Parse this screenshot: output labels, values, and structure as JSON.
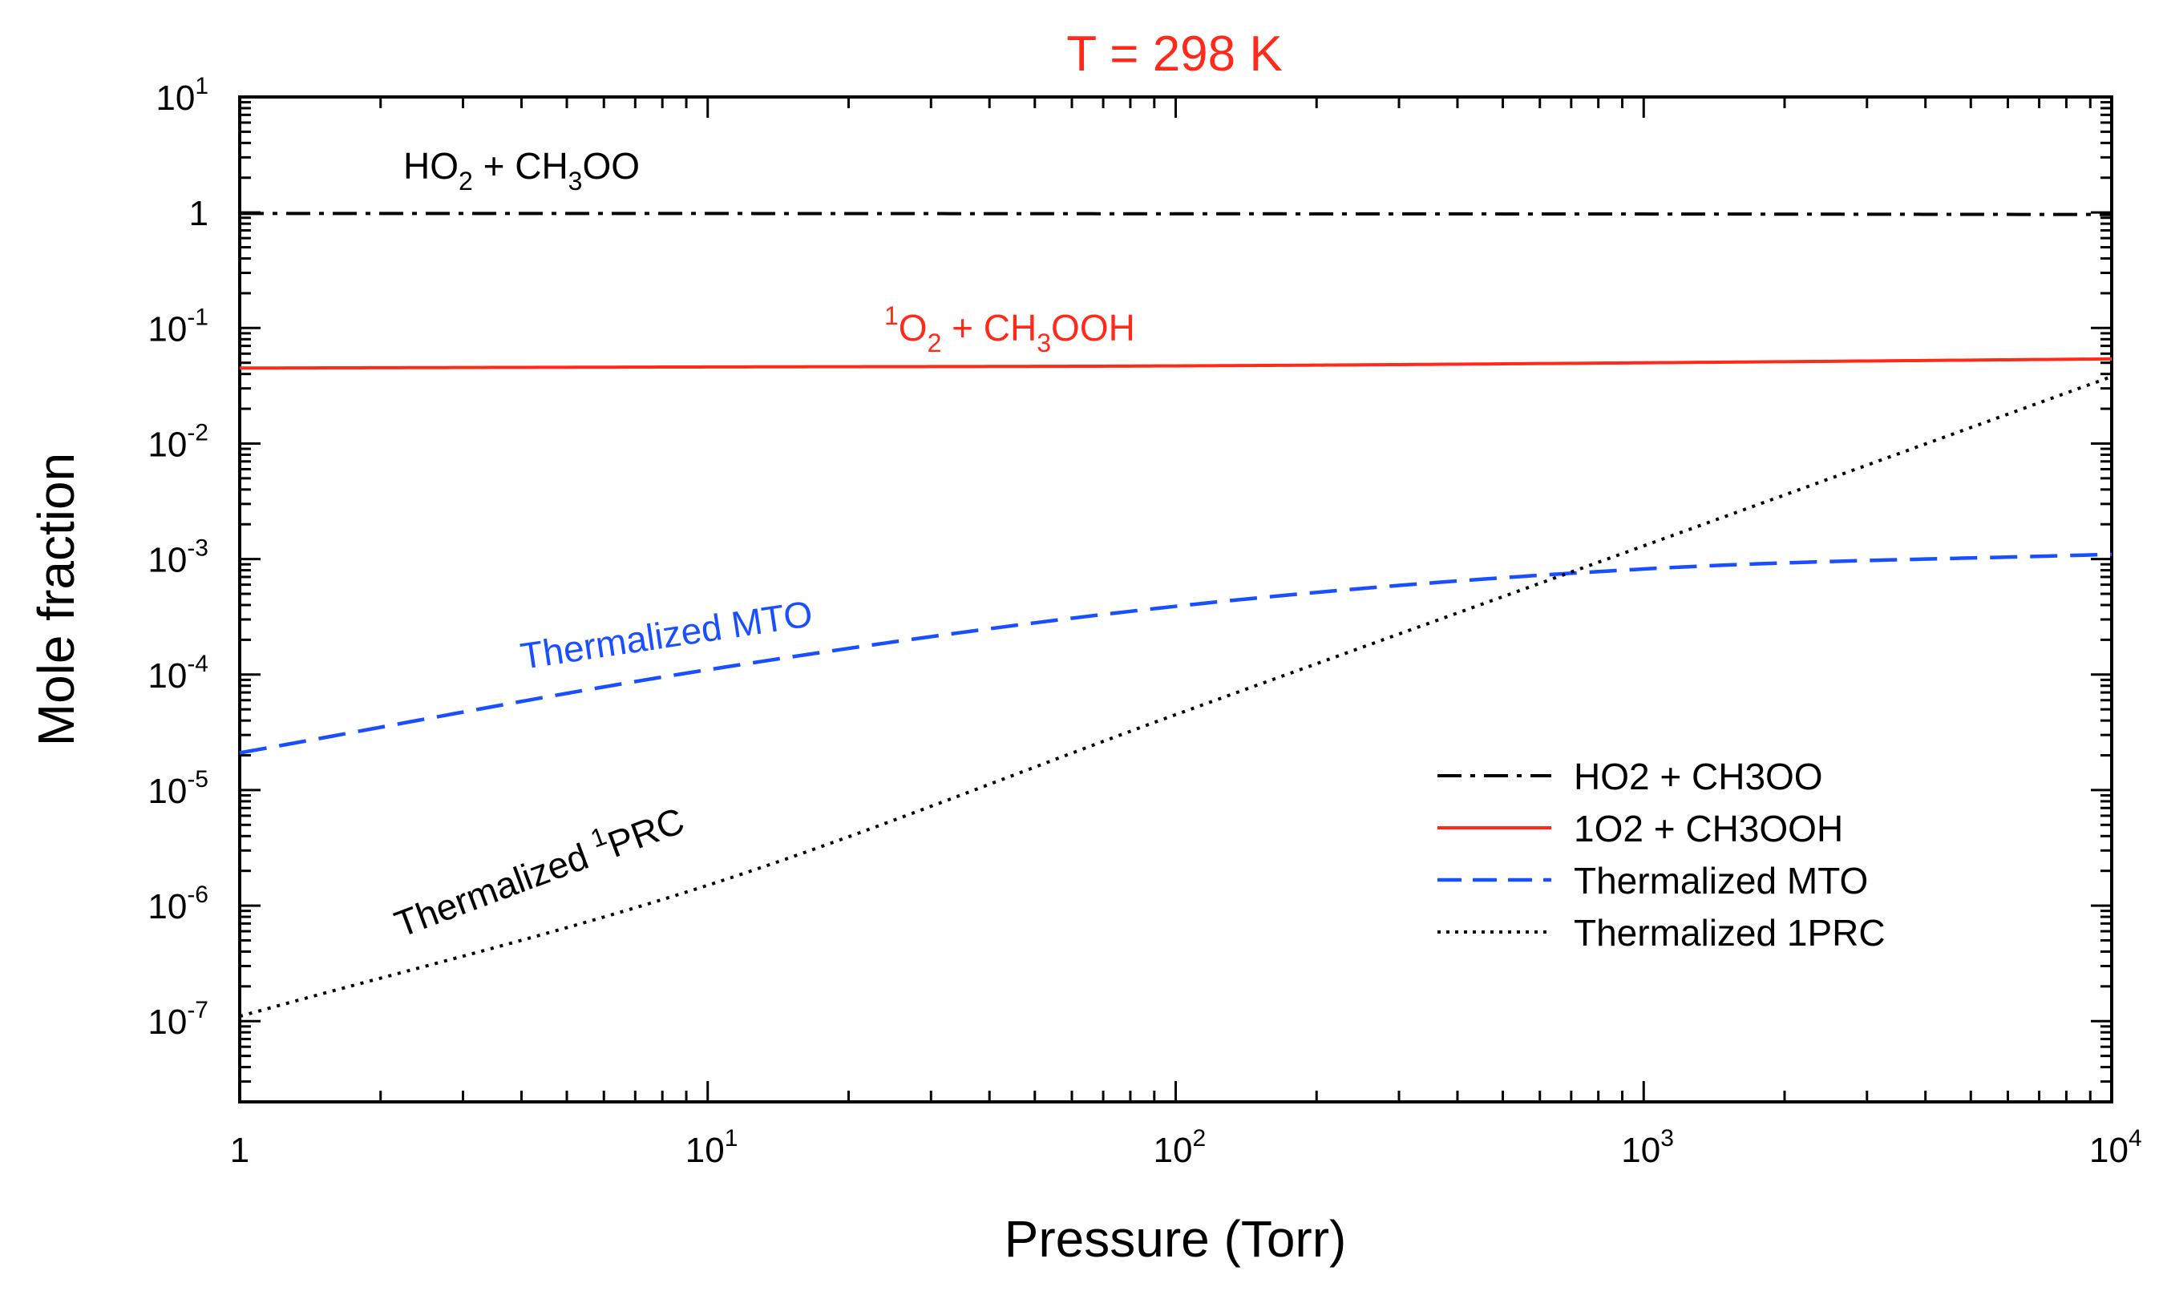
{
  "chart_data": {
    "type": "line",
    "title": "T = 298 K",
    "title_color": "#ff2a1a",
    "xlabel": "Pressure (Torr)",
    "ylabel": "Mole fraction",
    "xscale": "log",
    "yscale": "log",
    "xlim": [
      1,
      10000
    ],
    "ylim": [
      2e-08,
      10
    ],
    "grid": false,
    "legend_position": "bottom-right",
    "x_ticks": [
      {
        "value": 1,
        "base": "1",
        "exp": ""
      },
      {
        "value": 10,
        "base": "10",
        "exp": "1"
      },
      {
        "value": 100,
        "base": "10",
        "exp": "2"
      },
      {
        "value": 1000,
        "base": "10",
        "exp": "3"
      },
      {
        "value": 10000,
        "base": "10",
        "exp": "4"
      }
    ],
    "y_ticks": [
      {
        "value": 10,
        "base": "10",
        "exp": "1"
      },
      {
        "value": 1,
        "base": "1",
        "exp": ""
      },
      {
        "value": 0.1,
        "base": "10",
        "exp": "-1"
      },
      {
        "value": 0.01,
        "base": "10",
        "exp": "-2"
      },
      {
        "value": 0.001,
        "base": "10",
        "exp": "-3"
      },
      {
        "value": 0.0001,
        "base": "10",
        "exp": "-4"
      },
      {
        "value": 1e-05,
        "base": "10",
        "exp": "-5"
      },
      {
        "value": 1e-06,
        "base": "10",
        "exp": "-6"
      },
      {
        "value": 1e-07,
        "base": "10",
        "exp": "-7"
      }
    ],
    "x": [
      1,
      10,
      100,
      1000,
      10000
    ],
    "series": [
      {
        "name": "HO2 + CH3OO",
        "color": "#000000",
        "style": "dashdot",
        "values": [
          0.98,
          0.98,
          0.975,
          0.97,
          0.96
        ]
      },
      {
        "name": "1O2 + CH3OOH",
        "color": "#ff2a1a",
        "style": "solid",
        "values": [
          0.045,
          0.046,
          0.047,
          0.05,
          0.054
        ]
      },
      {
        "name": "Thermalized MTO",
        "color": "#1a4fff",
        "style": "dashed",
        "values": [
          2.1e-05,
          0.00011,
          0.00039,
          0.00082,
          0.0011
        ]
      },
      {
        "name": "Thermalized 1PRC",
        "color": "#000000",
        "style": "dotted",
        "values": [
          1.1e-07,
          1.5e-06,
          4.5e-05,
          0.0013,
          0.038
        ]
      }
    ],
    "annotations": [
      {
        "name": "label-ho2",
        "main": "HO",
        "sub1": "2",
        "mid": " + CH",
        "sub2": "3",
        "tail": "OO",
        "color": "#000000"
      },
      {
        "name": "label-1o2",
        "sup": "1",
        "main": "O",
        "sub1": "2",
        "mid": " + CH",
        "sub2": "3",
        "tail": "OOH",
        "color": "#ff2a1a"
      },
      {
        "name": "label-mto",
        "text": "Thermalized MTO",
        "color": "#1a4fff"
      },
      {
        "name": "label-prc",
        "pre": "Thermalized ",
        "sup": "1",
        "tail": "PRC",
        "color": "#000000"
      }
    ]
  }
}
